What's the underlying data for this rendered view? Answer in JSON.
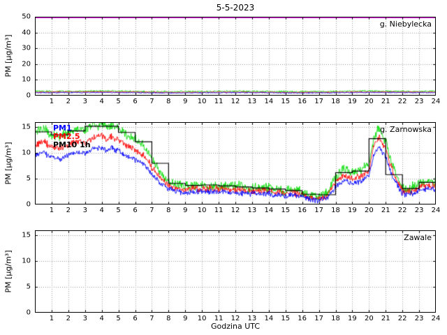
{
  "title": "5-5-2023",
  "xlabel": "Godzina UTC",
  "ylabel": "PM [µg/m³]",
  "colors": {
    "grid": "#9a9a9a",
    "axis": "#000000",
    "limit": "#ff00ff",
    "pm10": "#00dd00",
    "pm25": "#ff0000",
    "pm1": "#0000ff",
    "pm10_1h": "#000000"
  },
  "chart_data": [
    {
      "type": "line",
      "station": "g. Niebylecka",
      "xlim": [
        0,
        24
      ],
      "ylim": [
        0,
        50
      ],
      "xticks": [
        1,
        2,
        3,
        4,
        5,
        6,
        7,
        8,
        9,
        10,
        11,
        12,
        13,
        14,
        15,
        16,
        17,
        18,
        19,
        20,
        21,
        22,
        23,
        24
      ],
      "yticks": [
        0,
        10,
        20,
        30,
        40,
        50
      ],
      "limit_value": 50,
      "series": [
        {
          "name": "PM10",
          "color": "#00dd00",
          "seed": 11,
          "amp": 0.5,
          "anchors": [
            [
              0,
              2.8
            ],
            [
              2,
              2.6
            ],
            [
              4,
              3.0
            ],
            [
              6,
              2.5
            ],
            [
              8,
              2.4
            ],
            [
              10,
              2.6
            ],
            [
              12,
              2.8
            ],
            [
              14,
              2.6
            ],
            [
              16,
              2.5
            ],
            [
              18,
              2.6
            ],
            [
              20,
              2.9
            ],
            [
              22,
              2.6
            ],
            [
              24,
              2.8
            ]
          ]
        },
        {
          "name": "PM2.5",
          "color": "#ff0000",
          "seed": 22,
          "amp": 0.35,
          "anchors": [
            [
              0,
              2.2
            ],
            [
              4,
              2.4
            ],
            [
              8,
              2.0
            ],
            [
              12,
              2.2
            ],
            [
              16,
              2.0
            ],
            [
              20,
              2.3
            ],
            [
              24,
              2.2
            ]
          ]
        },
        {
          "name": "PM1",
          "color": "#0000ff",
          "seed": 33,
          "amp": 0.3,
          "anchors": [
            [
              0,
              1.8
            ],
            [
              4,
              2.0
            ],
            [
              8,
              1.7
            ],
            [
              12,
              1.9
            ],
            [
              16,
              1.7
            ],
            [
              20,
              2.0
            ],
            [
              24,
              1.9
            ]
          ]
        }
      ]
    },
    {
      "type": "line",
      "station": "g. Zarnowska",
      "xlim": [
        0,
        24
      ],
      "ylim": [
        0,
        16
      ],
      "xticks": [
        1,
        2,
        3,
        4,
        5,
        6,
        7,
        8,
        9,
        10,
        11,
        12,
        13,
        14,
        15,
        16,
        17,
        18,
        19,
        20,
        21,
        22,
        23,
        24
      ],
      "yticks": [
        0,
        5,
        10,
        15
      ],
      "legend": [
        {
          "label": "PM1",
          "color": "#0000ff"
        },
        {
          "label": "PM2.5",
          "color": "#ff0000"
        },
        {
          "label": "PM10 1h",
          "color": "#000000"
        }
      ],
      "series": [
        {
          "name": "PM10",
          "color": "#00dd00",
          "seed": 41,
          "amp": 0.8,
          "anchors": [
            [
              0,
              14.0
            ],
            [
              0.5,
              14.6
            ],
            [
              1,
              13.6
            ],
            [
              1.5,
              13.2
            ],
            [
              2,
              14.0
            ],
            [
              2.5,
              14.7
            ],
            [
              3,
              14.4
            ],
            [
              3.5,
              15.3
            ],
            [
              4,
              15.6
            ],
            [
              4.3,
              14.9
            ],
            [
              4.6,
              15.5
            ],
            [
              5,
              15.0
            ],
            [
              5.5,
              13.6
            ],
            [
              6,
              12.8
            ],
            [
              6.5,
              11.6
            ],
            [
              7,
              8.8
            ],
            [
              7.5,
              6.3
            ],
            [
              8,
              4.5
            ],
            [
              8.5,
              3.8
            ],
            [
              9,
              3.6
            ],
            [
              10,
              3.8
            ],
            [
              11,
              3.7
            ],
            [
              12,
              3.6
            ],
            [
              13,
              3.2
            ],
            [
              14,
              3.3
            ],
            [
              15,
              2.6
            ],
            [
              15.5,
              3.0
            ],
            [
              16,
              2.4
            ],
            [
              16.5,
              1.7
            ],
            [
              17,
              1.5
            ],
            [
              17.5,
              2.2
            ],
            [
              18,
              5.3
            ],
            [
              18.5,
              7.0
            ],
            [
              19,
              6.1
            ],
            [
              19.5,
              6.8
            ],
            [
              20,
              8.0
            ],
            [
              20.3,
              13.2
            ],
            [
              20.6,
              14.8
            ],
            [
              21,
              12.4
            ],
            [
              21.3,
              8.8
            ],
            [
              21.7,
              5.3
            ],
            [
              22,
              3.1
            ],
            [
              22.5,
              3.2
            ],
            [
              23,
              4.1
            ],
            [
              23.5,
              4.6
            ],
            [
              24,
              4.2
            ]
          ]
        },
        {
          "name": "PM2.5",
          "color": "#ff0000",
          "seed": 42,
          "amp": 0.55,
          "anchors": [
            [
              0,
              11.5
            ],
            [
              0.5,
              12.2
            ],
            [
              1,
              11.2
            ],
            [
              1.5,
              10.8
            ],
            [
              2,
              11.6
            ],
            [
              2.5,
              12.3
            ],
            [
              3,
              12.0
            ],
            [
              3.5,
              13.0
            ],
            [
              4,
              13.4
            ],
            [
              4.3,
              12.6
            ],
            [
              4.6,
              13.2
            ],
            [
              5,
              12.6
            ],
            [
              5.5,
              11.4
            ],
            [
              6,
              10.6
            ],
            [
              6.5,
              9.6
            ],
            [
              7,
              7.2
            ],
            [
              7.5,
              5.2
            ],
            [
              8,
              3.7
            ],
            [
              8.5,
              3.1
            ],
            [
              9,
              2.9
            ],
            [
              10,
              3.1
            ],
            [
              11,
              3.0
            ],
            [
              12,
              2.9
            ],
            [
              13,
              2.6
            ],
            [
              14,
              2.7
            ],
            [
              15,
              2.1
            ],
            [
              15.5,
              2.4
            ],
            [
              16,
              1.9
            ],
            [
              16.5,
              1.3
            ],
            [
              17,
              1.1
            ],
            [
              17.5,
              1.7
            ],
            [
              18,
              4.3
            ],
            [
              18.5,
              5.7
            ],
            [
              19,
              4.9
            ],
            [
              19.5,
              5.5
            ],
            [
              20,
              6.6
            ],
            [
              20.3,
              11.5
            ],
            [
              20.6,
              13.0
            ],
            [
              21,
              10.8
            ],
            [
              21.3,
              7.5
            ],
            [
              21.7,
              4.4
            ],
            [
              22,
              2.5
            ],
            [
              22.5,
              2.6
            ],
            [
              23,
              3.3
            ],
            [
              23.5,
              3.7
            ],
            [
              24,
              3.4
            ]
          ]
        },
        {
          "name": "PM1",
          "color": "#0000ff",
          "seed": 43,
          "amp": 0.45,
          "anchors": [
            [
              0,
              9.5
            ],
            [
              0.5,
              10.1
            ],
            [
              1,
              9.2
            ],
            [
              1.5,
              8.9
            ],
            [
              2,
              9.6
            ],
            [
              2.5,
              10.2
            ],
            [
              3,
              9.9
            ],
            [
              3.5,
              10.8
            ],
            [
              4,
              11.1
            ],
            [
              4.3,
              10.4
            ],
            [
              4.6,
              10.9
            ],
            [
              5,
              10.4
            ],
            [
              5.5,
              9.4
            ],
            [
              6,
              8.7
            ],
            [
              6.5,
              7.9
            ],
            [
              7,
              5.9
            ],
            [
              7.5,
              4.2
            ],
            [
              8,
              3.0
            ],
            [
              8.5,
              2.5
            ],
            [
              9,
              2.3
            ],
            [
              10,
              2.5
            ],
            [
              11,
              2.4
            ],
            [
              12,
              2.3
            ],
            [
              13,
              2.0
            ],
            [
              14,
              2.1
            ],
            [
              15,
              1.6
            ],
            [
              15.5,
              1.9
            ],
            [
              16,
              1.5
            ],
            [
              16.5,
              1.0
            ],
            [
              17,
              0.8
            ],
            [
              17.5,
              1.3
            ],
            [
              18,
              3.5
            ],
            [
              18.5,
              4.7
            ],
            [
              19,
              4.0
            ],
            [
              19.5,
              4.5
            ],
            [
              20,
              5.5
            ],
            [
              20.3,
              9.8
            ],
            [
              20.6,
              11.2
            ],
            [
              21,
              9.2
            ],
            [
              21.3,
              6.3
            ],
            [
              21.7,
              3.6
            ],
            [
              22,
              2.0
            ],
            [
              22.5,
              2.1
            ],
            [
              23,
              2.7
            ],
            [
              23.5,
              3.1
            ],
            [
              24,
              2.8
            ]
          ]
        }
      ],
      "step_series": {
        "name": "PM10 1h",
        "color": "#000000",
        "values": [
          14.1,
          13.5,
          14.3,
          15.2,
          15.2,
          14.0,
          12.2,
          8.0,
          4.1,
          3.7,
          3.8,
          3.6,
          3.4,
          3.2,
          3.0,
          2.7,
          2.0,
          1.9,
          6.2,
          6.5,
          12.8,
          5.8,
          3.1,
          4.3
        ]
      }
    },
    {
      "type": "line",
      "station": "Zawale",
      "xlim": [
        0,
        24
      ],
      "ylim": [
        0,
        16
      ],
      "xticks": [
        1,
        2,
        3,
        4,
        5,
        6,
        7,
        8,
        9,
        10,
        11,
        12,
        13,
        14,
        15,
        16,
        17,
        18,
        19,
        20,
        21,
        22,
        23,
        24
      ],
      "yticks": [
        0,
        5,
        10,
        15
      ],
      "series": []
    }
  ]
}
